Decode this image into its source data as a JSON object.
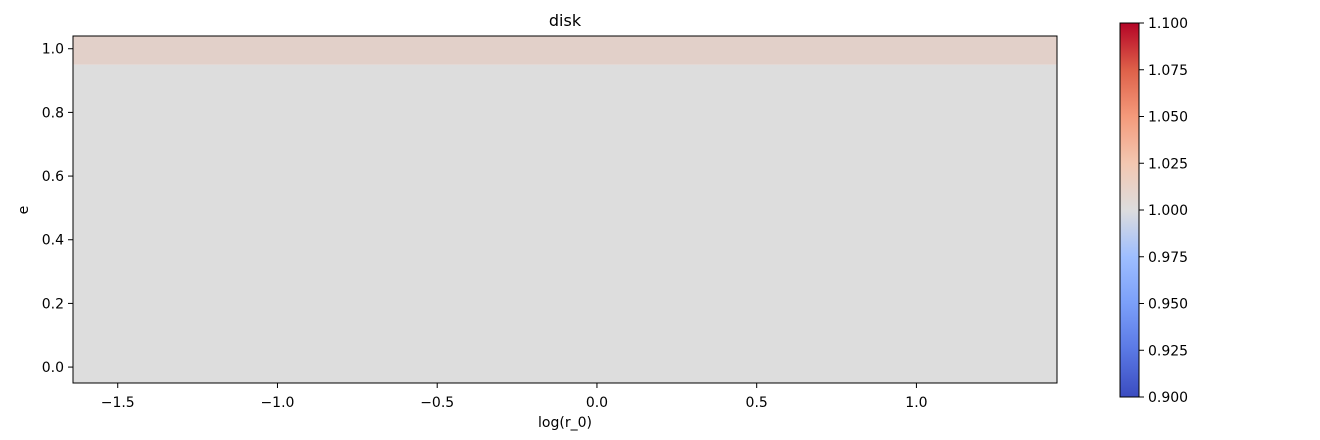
{
  "chart_data": {
    "type": "heatmap",
    "title": "disk",
    "xlabel": "log(r_0)",
    "ylabel": "e",
    "xlim": [
      -1.64,
      1.44
    ],
    "ylim": [
      -0.05,
      1.04
    ],
    "xticks": [
      -1.5,
      -1.0,
      -0.5,
      0.0,
      0.5,
      1.0
    ],
    "xtick_labels": [
      "−1.5",
      "−1.0",
      "−0.5",
      "0.0",
      "0.5",
      "1.0"
    ],
    "yticks": [
      0.0,
      0.2,
      0.4,
      0.6,
      0.8,
      1.0
    ],
    "ytick_labels": [
      "0.0",
      "0.2",
      "0.4",
      "0.6",
      "0.8",
      "1.0"
    ],
    "colormap": "coolwarm",
    "vmin": 0.9,
    "vmax": 1.1,
    "colorbar_ticks": [
      0.9,
      0.925,
      0.95,
      0.975,
      1.0,
      1.025,
      1.05,
      1.075,
      1.1
    ],
    "colorbar_tick_labels": [
      "0.900",
      "0.925",
      "0.950",
      "0.975",
      "1.000",
      "1.025",
      "1.050",
      "1.075",
      "1.100"
    ],
    "bands": [
      {
        "e_from": -0.05,
        "e_to": 0.95,
        "value": 1.0
      },
      {
        "e_from": 0.95,
        "e_to": 1.04,
        "value": 1.01
      }
    ],
    "grid": false
  }
}
